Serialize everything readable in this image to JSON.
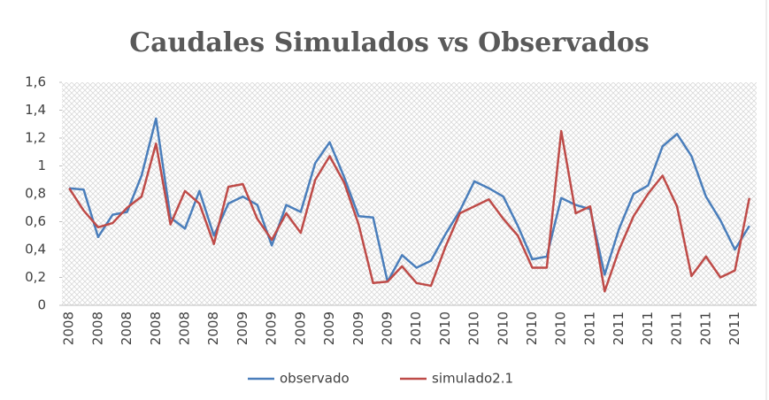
{
  "chart_data": {
    "type": "line",
    "title": "Caudales Simulados vs Observados",
    "categories": [
      "2008",
      null,
      "2008",
      null,
      "2008",
      null,
      "2008",
      null,
      "2008",
      null,
      "2008",
      null,
      "2009",
      null,
      "2009",
      null,
      "2009",
      null,
      "2009",
      null,
      "2009",
      null,
      "2009",
      null,
      "2010",
      null,
      "2010",
      null,
      "2010",
      null,
      "2010",
      null,
      "2010",
      null,
      "2010",
      null,
      "2011",
      null,
      "2011",
      null,
      "2011",
      null,
      "2011",
      null,
      "2011",
      null,
      "2011",
      null
    ],
    "series": [
      {
        "name": "observado",
        "color": "#4a7ebb",
        "values": [
          0.84,
          0.83,
          0.49,
          0.65,
          0.67,
          0.93,
          1.34,
          0.63,
          0.55,
          0.82,
          0.5,
          0.73,
          0.78,
          0.72,
          0.43,
          0.72,
          0.67,
          1.02,
          1.17,
          0.92,
          0.64,
          0.63,
          0.17,
          0.36,
          0.27,
          0.32,
          0.51,
          0.68,
          0.89,
          0.84,
          0.78,
          0.57,
          0.33,
          0.35,
          0.77,
          0.72,
          0.69,
          0.22,
          0.55,
          0.8,
          0.86,
          1.14,
          1.23,
          1.07,
          0.78,
          0.61,
          0.4,
          0.57
        ]
      },
      {
        "name": "simulado2.1",
        "color": "#be4b48",
        "values": [
          0.84,
          0.68,
          0.56,
          0.59,
          0.7,
          0.78,
          1.16,
          0.58,
          0.82,
          0.73,
          0.44,
          0.85,
          0.87,
          0.62,
          0.47,
          0.66,
          0.52,
          0.9,
          1.07,
          0.88,
          0.58,
          0.16,
          0.17,
          0.28,
          0.16,
          0.14,
          0.42,
          0.66,
          0.71,
          0.76,
          0.62,
          0.5,
          0.27,
          0.27,
          1.25,
          0.66,
          0.71,
          0.1,
          0.4,
          0.64,
          0.8,
          0.93,
          0.71,
          0.21,
          0.35,
          0.2,
          0.25,
          0.77
        ]
      }
    ],
    "ylim": [
      0,
      1.6
    ],
    "yticks": [
      0,
      {
        "value": 0.2,
        "label": "0,2"
      },
      {
        "value": 0.4,
        "label": "0,4"
      },
      {
        "value": 0.6,
        "label": "0,6"
      },
      {
        "value": 0.8,
        "label": "0,8"
      },
      1,
      {
        "value": 1.2,
        "label": "1,2"
      },
      {
        "value": 1.4,
        "label": "1,4"
      },
      {
        "value": 1.6,
        "label": "1,6"
      }
    ],
    "grid": false,
    "legend": "bottom"
  }
}
